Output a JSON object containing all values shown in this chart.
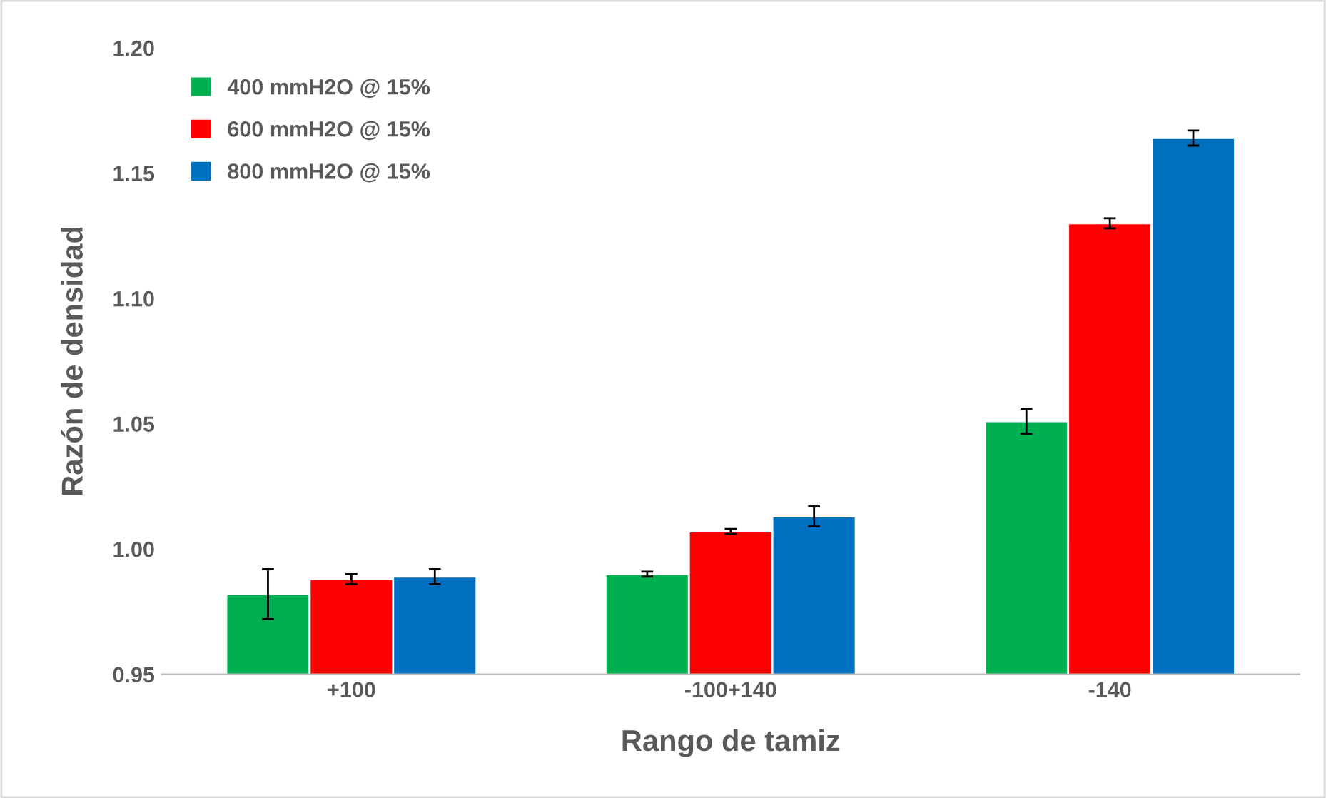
{
  "chart_data": {
    "type": "bar",
    "xlabel": "Rango de tamiz",
    "ylabel": "Razón de densidad",
    "categories": [
      "+100",
      "-100+140",
      "-140"
    ],
    "series": [
      {
        "name": "400 mmH2O @ 15%",
        "color": "#00b050",
        "values": [
          0.982,
          0.99,
          1.051
        ],
        "errors": [
          0.01,
          0.001,
          0.005
        ]
      },
      {
        "name": "600 mmH2O @ 15%",
        "color": "#ff0000",
        "values": [
          0.988,
          1.007,
          1.13
        ],
        "errors": [
          0.002,
          0.001,
          0.002
        ]
      },
      {
        "name": "800 mmH2O @ 15%",
        "color": "#0070c0",
        "values": [
          0.989,
          1.013,
          1.164
        ],
        "errors": [
          0.003,
          0.004,
          0.003
        ]
      }
    ],
    "ylim": [
      0.95,
      1.2
    ],
    "yticks": [
      {
        "value": 0.95,
        "label": "0.95"
      },
      {
        "value": 1.0,
        "label": "1.00"
      },
      {
        "value": 1.05,
        "label": "1.05"
      },
      {
        "value": 1.1,
        "label": "1.10"
      },
      {
        "value": 1.15,
        "label": "1.15"
      },
      {
        "value": 1.2,
        "label": "1.20"
      }
    ],
    "grid": false,
    "legend": "top left"
  }
}
